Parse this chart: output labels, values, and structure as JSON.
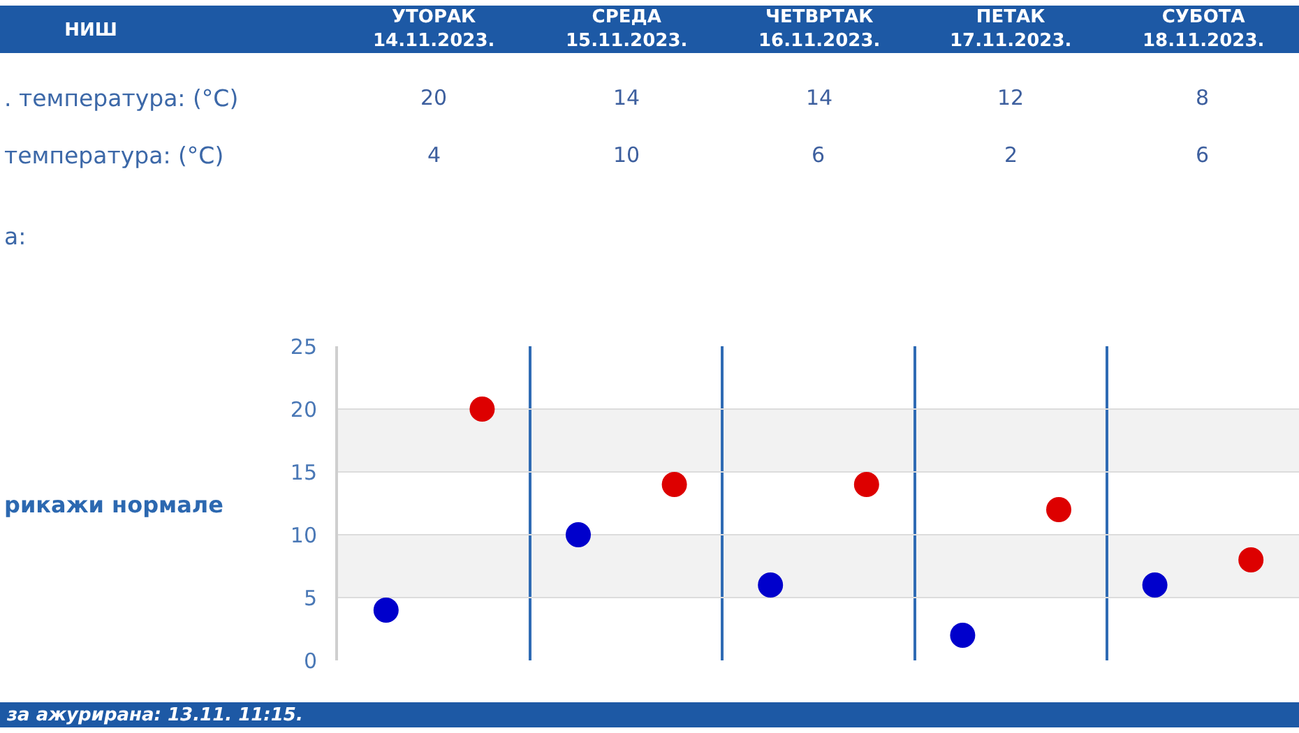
{
  "chart_data": {
    "type": "scatter",
    "title": "НИШ",
    "categories": [
      null,
      null,
      null,
      null,
      null
    ],
    "series": [
      {
        "color": "#dd0000",
        "values": [
          20,
          14,
          14,
          12,
          8
        ]
      },
      {
        "color": "#0000cc",
        "values": [
          4,
          10,
          6,
          2,
          6
        ]
      }
    ],
    "ylim": [
      0,
      25
    ],
    "yticks": [
      0,
      5,
      10,
      15,
      20,
      25
    ],
    "grid": true,
    "marker": "circle",
    "data_labels": true,
    "tick_labels": "y",
    "bands": [
      {
        "axis": "y",
        "from": 5,
        "to": 10,
        "color": "#f2f2f2"
      },
      {
        "axis": "y",
        "from": 15,
        "to": 20,
        "color": "#f2f2f2"
      }
    ],
    "annotations": [
      "УТОРАК\n14.11.2023.",
      "СРЕДА\n15.11.2023.",
      "ЧЕТВРТАК\n16.11.2023.",
      "ПЕТАК\n17.11.2023.",
      "СУБОТА\n18.11.2023.",
      ". температура: (°C)",
      "температура: (°C)",
      "а:",
      "рикажи нормале",
      "за ажурирана: 13.11. 11:15."
    ]
  }
}
